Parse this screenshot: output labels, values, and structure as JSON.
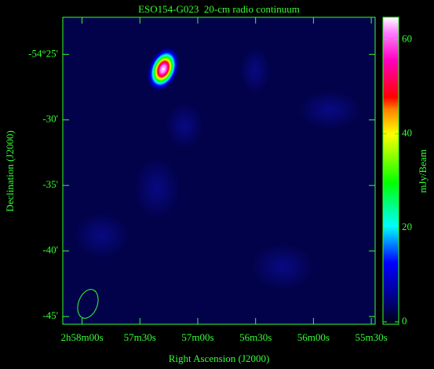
{
  "chart_data": {
    "type": "image",
    "title": "ESO154-G023  20-cm radio continuum",
    "x_label": "Right Ascension (J2000)",
    "y_label": "Declination (J2000)",
    "colorbar_label": "mJy/Beam",
    "xlim": [
      3490,
      3328
    ],
    "xticks": [
      {
        "value": 3480,
        "label": "2h58m00s"
      },
      {
        "value": 3450,
        "label": "57m30s"
      },
      {
        "value": 3420,
        "label": "57m00s"
      },
      {
        "value": 3390,
        "label": "56m30s"
      },
      {
        "value": 3360,
        "label": "56m00s"
      },
      {
        "value": 3330,
        "label": "55m30s"
      }
    ],
    "ylim": [
      -54.7598,
      -54.3695
    ],
    "yticks": [
      {
        "value": -54.4167,
        "label": "-54°25'"
      },
      {
        "value": -54.5,
        "label": "-30'"
      },
      {
        "value": -54.5833,
        "label": "-35'"
      },
      {
        "value": -54.6667,
        "label": "-40'"
      },
      {
        "value": -54.75,
        "label": "-45'"
      }
    ],
    "clim": [
      -0.5,
      64.8
    ],
    "cticks": [
      0,
      20,
      40,
      60
    ],
    "source": {
      "x": 3437.9,
      "y": -54.4354,
      "peak": 65
    }
  }
}
